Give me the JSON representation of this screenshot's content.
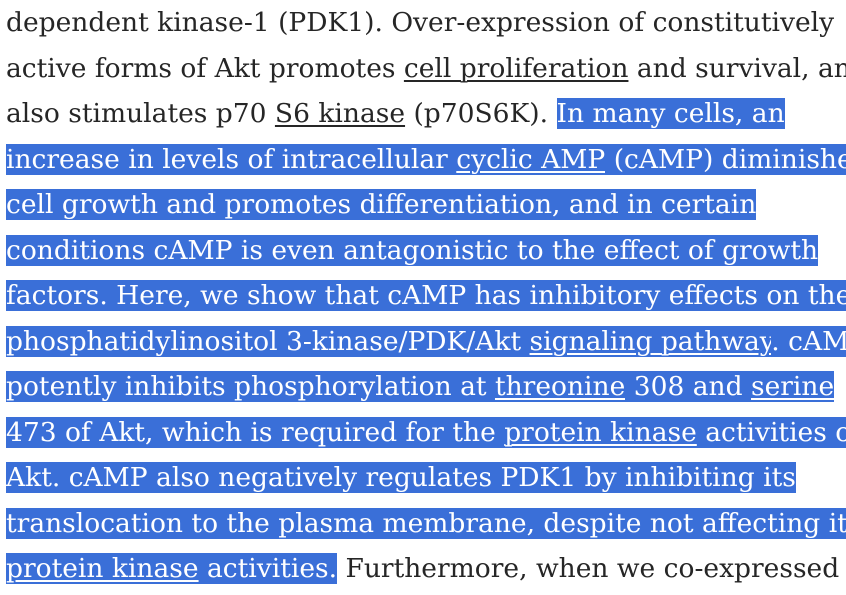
{
  "article": {
    "lines": [
      {
        "segments": [
          {
            "text": "dependent kinase-1 (PDK1). Over-expression of constitutively"
          }
        ]
      },
      {
        "segments": [
          {
            "text": "active forms of Akt promotes "
          },
          {
            "text": "cell proliferation",
            "link": true
          },
          {
            "text": " and survival, and"
          }
        ]
      },
      {
        "segments": [
          {
            "text": "also stimulates p70 "
          },
          {
            "text": "S6 kinase",
            "link": true
          },
          {
            "text": " (p70S6K). "
          },
          {
            "text": "In many cells, an",
            "highlight": true
          }
        ]
      },
      {
        "segments": [
          {
            "text": "increase in levels of intracellular ",
            "highlight": true
          },
          {
            "text": "cyclic AMP",
            "highlight": true,
            "link": true
          },
          {
            "text": " (cAMP) diminishes",
            "highlight": true
          }
        ]
      },
      {
        "segments": [
          {
            "text": "cell growth and promotes differentiation, and in certain",
            "highlight": true
          }
        ]
      },
      {
        "segments": [
          {
            "text": "conditions cAMP is even antagonistic to the effect of growth",
            "highlight": true
          }
        ]
      },
      {
        "segments": [
          {
            "text": "factors. Here, we show that cAMP has inhibitory effects on the",
            "highlight": true
          }
        ]
      },
      {
        "segments": [
          {
            "text": "phosphatidylinositol 3-kinase/PDK/Akt ",
            "highlight": true
          },
          {
            "text": "signaling pathway",
            "highlight": true,
            "link": true
          },
          {
            "text": ". cAMP",
            "highlight": true
          }
        ]
      },
      {
        "segments": [
          {
            "text": "potently inhibits phosphorylation at ",
            "highlight": true
          },
          {
            "text": "threonine",
            "highlight": true,
            "link": true
          },
          {
            "text": " 308 and ",
            "highlight": true
          },
          {
            "text": "serine",
            "highlight": true,
            "link": true
          }
        ]
      },
      {
        "segments": [
          {
            "text": "473 of Akt, which is required for the ",
            "highlight": true
          },
          {
            "text": "protein kinase",
            "highlight": true,
            "link": true
          },
          {
            "text": " activities of",
            "highlight": true
          }
        ]
      },
      {
        "segments": [
          {
            "text": "Akt. cAMP also negatively regulates PDK1 by inhibiting its",
            "highlight": true
          }
        ]
      },
      {
        "segments": [
          {
            "text": "translocation to the plasma membrane, despite not affecting its",
            "highlight": true
          }
        ]
      },
      {
        "segments": [
          {
            "text": "protein kinase",
            "highlight": true,
            "link": true
          },
          {
            "text": " activities.",
            "highlight": true
          },
          {
            "text": " Furthermore, when we co-expressed"
          }
        ]
      }
    ]
  },
  "colors": {
    "text": "#262626",
    "selection_background": "#3a6fd8",
    "selection_text": "#ffffff",
    "page_background": "#ffffff"
  }
}
